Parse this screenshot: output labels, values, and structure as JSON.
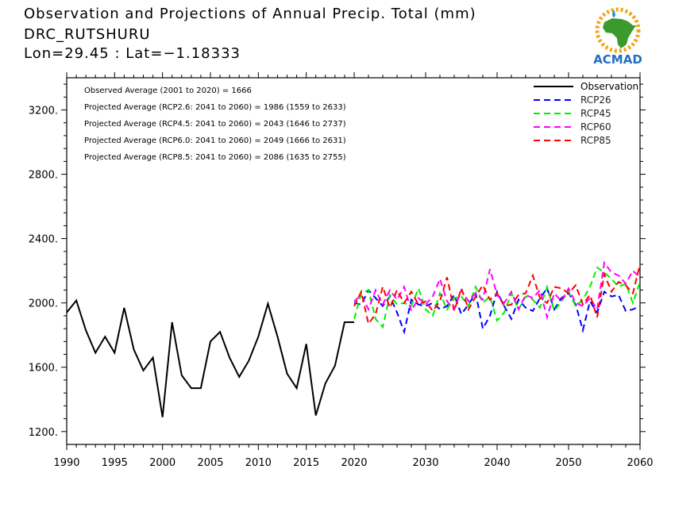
{
  "header": {
    "title": "Observation and Projections of Annual Precip. Total (mm)",
    "location": "DRC_RUTSHURU",
    "coords": "Lon=29.45 : Lat=−1.18333"
  },
  "logo": {
    "text": "ACMAD",
    "accent": "#1f8fd6",
    "africa": "#3a9a2b",
    "sun": "#f2a516"
  },
  "annotations": [
    "Observed Average (2001 to 2020) = 1666",
    "Projected Average (RCP2.6: 2041 to 2060) = 1986 (1559 to 2633)",
    "Projected Average (RCP4.5: 2041 to 2060) = 2043 (1646 to 2737)",
    "Projected Average (RCP6.0: 2041 to 2060) = 2049 (1666 to 2631)",
    "Projected Average (RCP8.5: 2041 to 2060) = 2086 (1635 to 2755)"
  ],
  "chart_data": {
    "type": "line",
    "title": "Observation and Projections of Annual Precip. Total (mm)",
    "xlabel": "",
    "ylabel": "",
    "xlim": [
      1990,
      2060
    ],
    "ylim": [
      1120,
      3400
    ],
    "x_ticks": [
      1990,
      1995,
      2000,
      2005,
      2010,
      2015,
      2020,
      2030,
      2040,
      2050,
      2060
    ],
    "x_tick_labels": [
      "1990",
      "1995",
      "2000",
      "2005",
      "2010",
      "2015",
      "2020",
      "2030",
      "2040",
      "2050",
      "2060"
    ],
    "y_ticks": [
      1200,
      1600,
      2000,
      2400,
      2800,
      3200
    ],
    "y_tick_labels": [
      "1200.",
      "1600.",
      "2000.",
      "2400.",
      "2800.",
      "3200."
    ],
    "legend_position": "top-right",
    "series": [
      {
        "name": "Observation",
        "color": "#000000",
        "dash": "solid",
        "x": [
          1990,
          1991,
          1992,
          1993,
          1994,
          1995,
          1996,
          1997,
          1998,
          1999,
          2000,
          2001,
          2002,
          2003,
          2004,
          2005,
          2006,
          2007,
          2008,
          2009,
          2010,
          2011,
          2012,
          2013,
          2014,
          2015,
          2016,
          2017,
          2018,
          2019,
          2020
        ],
        "values": [
          1940,
          2015,
          1830,
          1690,
          1790,
          1690,
          1970,
          1710,
          1580,
          1660,
          1290,
          1880,
          1550,
          1470,
          1470,
          1760,
          1820,
          1660,
          1540,
          1640,
          1790,
          1995,
          1790,
          1560,
          1470,
          1745,
          1300,
          1500,
          1610,
          1880,
          1880
        ]
      },
      {
        "name": "RCP26",
        "color": "#0000ff",
        "dash": "dashed",
        "x": [
          2020,
          2021,
          2022,
          2023,
          2024,
          2025,
          2026,
          2027,
          2028,
          2029,
          2030,
          2031,
          2032,
          2033,
          2034,
          2035,
          2036,
          2037,
          2038,
          2039,
          2040,
          2041,
          2042,
          2043,
          2044,
          2045,
          2046,
          2047,
          2048,
          2049,
          2050,
          2051,
          2052,
          2053,
          2054,
          2055,
          2056,
          2057,
          2058,
          2059,
          2060
        ],
        "values": [
          2000,
          1990,
          2080,
          2030,
          1980,
          2040,
          1940,
          1820,
          2020,
          1990,
          1980,
          2000,
          1960,
          1980,
          2050,
          1930,
          1990,
          2060,
          1840,
          1920,
          2070,
          1980,
          1900,
          2020,
          1970,
          1950,
          2030,
          2090,
          1960,
          2030,
          2060,
          1990,
          1830,
          2010,
          1940,
          2070,
          2040,
          2050,
          1950,
          1960,
          1980
        ]
      },
      {
        "name": "RCP45",
        "color": "#00ee00",
        "dash": "dashed",
        "x": [
          2020,
          2021,
          2022,
          2023,
          2024,
          2025,
          2026,
          2027,
          2028,
          2029,
          2030,
          2031,
          2032,
          2033,
          2034,
          2035,
          2036,
          2037,
          2038,
          2039,
          2040,
          2041,
          2042,
          2043,
          2044,
          2045,
          2046,
          2047,
          2048,
          2049,
          2050,
          2051,
          2052,
          2053,
          2054,
          2055,
          2056,
          2057,
          2058,
          2059,
          2060
        ],
        "values": [
          1900,
          2060,
          2080,
          1900,
          1850,
          2050,
          1990,
          2000,
          1980,
          2090,
          1960,
          1920,
          2060,
          1960,
          2030,
          2040,
          1980,
          2100,
          2000,
          2040,
          1890,
          1940,
          2060,
          1960,
          2040,
          2020,
          1970,
          2100,
          1950,
          2010,
          2070,
          1980,
          2020,
          2100,
          2220,
          2190,
          2150,
          2100,
          2120,
          2000,
          2130
        ]
      },
      {
        "name": "RCP60",
        "color": "#ff00ff",
        "dash": "dashed",
        "x": [
          2020,
          2021,
          2022,
          2023,
          2024,
          2025,
          2026,
          2027,
          2028,
          2029,
          2030,
          2031,
          2032,
          2033,
          2034,
          2035,
          2036,
          2037,
          2038,
          2039,
          2040,
          2041,
          2042,
          2043,
          2044,
          2045,
          2046,
          2047,
          2048,
          2049,
          2050,
          2051,
          2052,
          2053,
          2054,
          2055,
          2056,
          2057,
          2058,
          2059,
          2060
        ],
        "values": [
          2010,
          2050,
          1960,
          2080,
          1990,
          2080,
          2020,
          2100,
          1950,
          2030,
          1990,
          2040,
          2150,
          2010,
          1960,
          2080,
          2010,
          2060,
          2020,
          2210,
          2050,
          2000,
          2070,
          1960,
          2050,
          2030,
          2080,
          1910,
          2060,
          2010,
          2090,
          2000,
          1980,
          2030,
          1960,
          2250,
          2190,
          2170,
          2120,
          2200,
          2160
        ]
      },
      {
        "name": "RCP85",
        "color": "#ff0000",
        "dash": "dashed",
        "x": [
          2020,
          2021,
          2022,
          2023,
          2024,
          2025,
          2026,
          2027,
          2028,
          2029,
          2030,
          2031,
          2032,
          2033,
          2034,
          2035,
          2036,
          2037,
          2038,
          2039,
          2040,
          2041,
          2042,
          2043,
          2044,
          2045,
          2046,
          2047,
          2048,
          2049,
          2050,
          2051,
          2052,
          2053,
          2054,
          2055,
          2056,
          2057,
          2058,
          2059,
          2060
        ],
        "values": [
          1980,
          2070,
          1870,
          1930,
          2100,
          1970,
          2080,
          2000,
          2070,
          1990,
          2010,
          1950,
          2010,
          2160,
          1950,
          2090,
          1960,
          2040,
          2110,
          2020,
          2060,
          1980,
          1990,
          2050,
          2060,
          2170,
          2030,
          2000,
          2100,
          2090,
          2060,
          2110,
          1990,
          2050,
          1910,
          2180,
          2070,
          2130,
          2110,
          2060,
          2240
        ]
      }
    ]
  }
}
